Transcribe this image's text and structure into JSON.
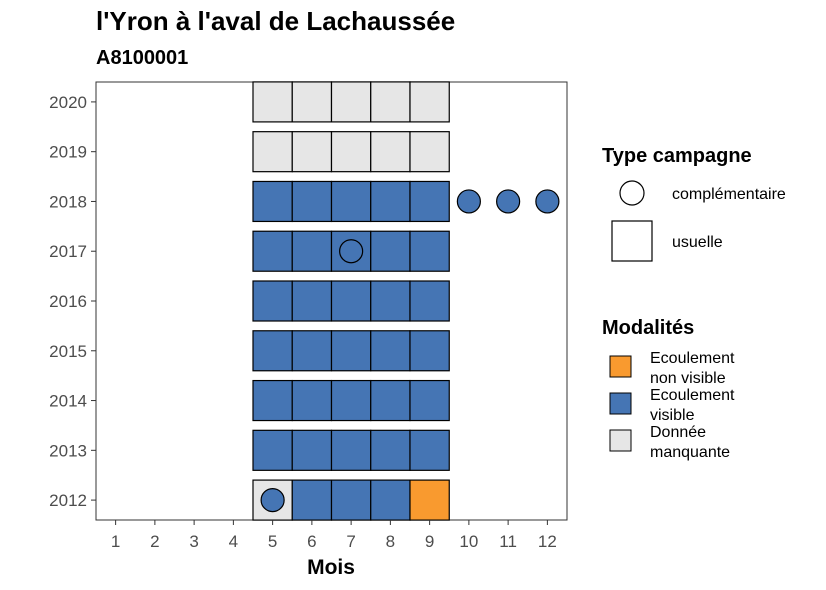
{
  "chart_data": {
    "type": "heatmap",
    "title": "l'Yron à l'aval de Lachaussée",
    "subtitle": "A8100001",
    "xlabel": "Mois",
    "ylabel": "",
    "x_ticks": [
      "1",
      "2",
      "3",
      "4",
      "5",
      "6",
      "7",
      "8",
      "9",
      "10",
      "11",
      "12"
    ],
    "y_ticks": [
      "2012",
      "2013",
      "2014",
      "2015",
      "2016",
      "2017",
      "2018",
      "2019",
      "2020"
    ],
    "xlim": [
      0.5,
      12.5
    ],
    "ylim": [
      2011.6,
      2020.4
    ],
    "grid": false,
    "legend_position": "right",
    "colors": {
      "Ecoulement non visible": "#F99A2F",
      "Ecoulement visible": "#4575B4",
      "Donnée manquante": "#E6E6E6"
    },
    "legends": {
      "type": {
        "title": "Type campagne",
        "items": [
          {
            "label": "complémentaire",
            "shape": "circle"
          },
          {
            "label": "usuelle",
            "shape": "square"
          }
        ]
      },
      "modalite": {
        "title": "Modalités",
        "items": [
          {
            "key": "Ecoulement non visible",
            "label_lines": [
              "Ecoulement",
              "non visible"
            ]
          },
          {
            "key": "Ecoulement visible",
            "label_lines": [
              "Ecoulement",
              "visible"
            ]
          },
          {
            "key": "Donnée manquante",
            "label_lines": [
              "Donnée",
              "manquante"
            ]
          }
        ]
      }
    },
    "points": [
      {
        "year": 2012,
        "month": 5,
        "type": "usuelle",
        "modalite": "Donnée manquante"
      },
      {
        "year": 2012,
        "month": 6,
        "type": "usuelle",
        "modalite": "Ecoulement visible"
      },
      {
        "year": 2012,
        "month": 7,
        "type": "usuelle",
        "modalite": "Ecoulement visible"
      },
      {
        "year": 2012,
        "month": 8,
        "type": "usuelle",
        "modalite": "Ecoulement visible"
      },
      {
        "year": 2012,
        "month": 9,
        "type": "usuelle",
        "modalite": "Ecoulement non visible"
      },
      {
        "year": 2013,
        "month": 5,
        "type": "usuelle",
        "modalite": "Ecoulement visible"
      },
      {
        "year": 2013,
        "month": 6,
        "type": "usuelle",
        "modalite": "Ecoulement visible"
      },
      {
        "year": 2013,
        "month": 7,
        "type": "usuelle",
        "modalite": "Ecoulement visible"
      },
      {
        "year": 2013,
        "month": 8,
        "type": "usuelle",
        "modalite": "Ecoulement visible"
      },
      {
        "year": 2013,
        "month": 9,
        "type": "usuelle",
        "modalite": "Ecoulement visible"
      },
      {
        "year": 2014,
        "month": 5,
        "type": "usuelle",
        "modalite": "Ecoulement visible"
      },
      {
        "year": 2014,
        "month": 6,
        "type": "usuelle",
        "modalite": "Ecoulement visible"
      },
      {
        "year": 2014,
        "month": 7,
        "type": "usuelle",
        "modalite": "Ecoulement visible"
      },
      {
        "year": 2014,
        "month": 8,
        "type": "usuelle",
        "modalite": "Ecoulement visible"
      },
      {
        "year": 2014,
        "month": 9,
        "type": "usuelle",
        "modalite": "Ecoulement visible"
      },
      {
        "year": 2015,
        "month": 5,
        "type": "usuelle",
        "modalite": "Ecoulement visible"
      },
      {
        "year": 2015,
        "month": 6,
        "type": "usuelle",
        "modalite": "Ecoulement visible"
      },
      {
        "year": 2015,
        "month": 7,
        "type": "usuelle",
        "modalite": "Ecoulement visible"
      },
      {
        "year": 2015,
        "month": 8,
        "type": "usuelle",
        "modalite": "Ecoulement visible"
      },
      {
        "year": 2015,
        "month": 9,
        "type": "usuelle",
        "modalite": "Ecoulement visible"
      },
      {
        "year": 2016,
        "month": 5,
        "type": "usuelle",
        "modalite": "Ecoulement visible"
      },
      {
        "year": 2016,
        "month": 6,
        "type": "usuelle",
        "modalite": "Ecoulement visible"
      },
      {
        "year": 2016,
        "month": 7,
        "type": "usuelle",
        "modalite": "Ecoulement visible"
      },
      {
        "year": 2016,
        "month": 8,
        "type": "usuelle",
        "modalite": "Ecoulement visible"
      },
      {
        "year": 2016,
        "month": 9,
        "type": "usuelle",
        "modalite": "Ecoulement visible"
      },
      {
        "year": 2017,
        "month": 5,
        "type": "usuelle",
        "modalite": "Ecoulement visible"
      },
      {
        "year": 2017,
        "month": 6,
        "type": "usuelle",
        "modalite": "Ecoulement visible"
      },
      {
        "year": 2017,
        "month": 7,
        "type": "usuelle",
        "modalite": "Ecoulement visible"
      },
      {
        "year": 2017,
        "month": 8,
        "type": "usuelle",
        "modalite": "Ecoulement visible"
      },
      {
        "year": 2017,
        "month": 9,
        "type": "usuelle",
        "modalite": "Ecoulement visible"
      },
      {
        "year": 2018,
        "month": 5,
        "type": "usuelle",
        "modalite": "Ecoulement visible"
      },
      {
        "year": 2018,
        "month": 6,
        "type": "usuelle",
        "modalite": "Ecoulement visible"
      },
      {
        "year": 2018,
        "month": 7,
        "type": "usuelle",
        "modalite": "Ecoulement visible"
      },
      {
        "year": 2018,
        "month": 8,
        "type": "usuelle",
        "modalite": "Ecoulement visible"
      },
      {
        "year": 2018,
        "month": 9,
        "type": "usuelle",
        "modalite": "Ecoulement visible"
      },
      {
        "year": 2019,
        "month": 5,
        "type": "usuelle",
        "modalite": "Donnée manquante"
      },
      {
        "year": 2019,
        "month": 6,
        "type": "usuelle",
        "modalite": "Donnée manquante"
      },
      {
        "year": 2019,
        "month": 7,
        "type": "usuelle",
        "modalite": "Donnée manquante"
      },
      {
        "year": 2019,
        "month": 8,
        "type": "usuelle",
        "modalite": "Donnée manquante"
      },
      {
        "year": 2019,
        "month": 9,
        "type": "usuelle",
        "modalite": "Donnée manquante"
      },
      {
        "year": 2020,
        "month": 5,
        "type": "usuelle",
        "modalite": "Donnée manquante"
      },
      {
        "year": 2020,
        "month": 6,
        "type": "usuelle",
        "modalite": "Donnée manquante"
      },
      {
        "year": 2020,
        "month": 7,
        "type": "usuelle",
        "modalite": "Donnée manquante"
      },
      {
        "year": 2020,
        "month": 8,
        "type": "usuelle",
        "modalite": "Donnée manquante"
      },
      {
        "year": 2020,
        "month": 9,
        "type": "usuelle",
        "modalite": "Donnée manquante"
      },
      {
        "year": 2012,
        "month": 5,
        "type": "complémentaire",
        "modalite": "Ecoulement visible"
      },
      {
        "year": 2017,
        "month": 7,
        "type": "complémentaire",
        "modalite": "Ecoulement visible"
      },
      {
        "year": 2018,
        "month": 10,
        "type": "complémentaire",
        "modalite": "Ecoulement visible"
      },
      {
        "year": 2018,
        "month": 11,
        "type": "complémentaire",
        "modalite": "Ecoulement visible"
      },
      {
        "year": 2018,
        "month": 12,
        "type": "complémentaire",
        "modalite": "Ecoulement visible"
      }
    ]
  }
}
